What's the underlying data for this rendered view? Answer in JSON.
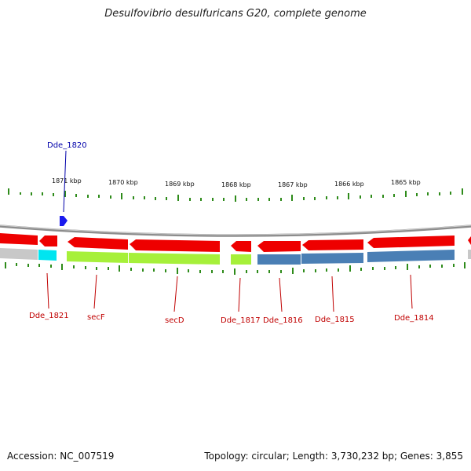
{
  "title": "Desulfovibrio desulfuricans G20, complete genome",
  "footer": {
    "accession": "Accession: NC_007519",
    "summary": "Topology: circular; Length: 3,730,232 bp; Genes: 3,855"
  },
  "ruler": {
    "labels": [
      "1871 kbp",
      "1870 kbp",
      "1869 kbp",
      "1868 kbp",
      "1867 kbp",
      "1866 kbp",
      "1865 kbp"
    ]
  },
  "colors": {
    "cds": "#ee0000",
    "backbone": "#8c8c8c",
    "tick": "#2e8b1a",
    "label_red": "#c00000",
    "label_blue": "#0000aa",
    "cog_cyan": "#00e5f0",
    "cog_green": "#a6f03a",
    "cog_blue": "#4a7fb5",
    "cog_gray": "#c8c8c8"
  },
  "genes": [
    {
      "name": "Dde_1821",
      "color": "red"
    },
    {
      "name": "secF",
      "color": "red"
    },
    {
      "name": "secD",
      "color": "red"
    },
    {
      "name": "Dde_1817",
      "color": "red"
    },
    {
      "name": "Dde_1816",
      "color": "red"
    },
    {
      "name": "Dde_1815",
      "color": "red"
    },
    {
      "name": "Dde_1814",
      "color": "red"
    },
    {
      "name": "Dde_1820",
      "color": "blue"
    }
  ]
}
